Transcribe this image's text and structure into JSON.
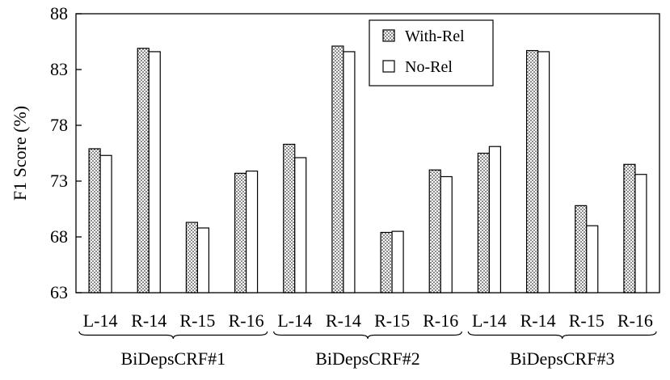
{
  "chart_data": {
    "type": "bar",
    "ylabel": "F1 Score (%)",
    "ylim": [
      63,
      88
    ],
    "yticks": [
      63,
      68,
      73,
      78,
      83,
      88
    ],
    "legend_position": "top-center",
    "groups": [
      {
        "name": "BiDepsCRF#1",
        "categories": [
          "L-14",
          "R-14",
          "R-15",
          "R-16"
        ],
        "series": [
          {
            "name": "With-Rel",
            "values": [
              75.9,
              84.9,
              69.3,
              73.7
            ]
          },
          {
            "name": "No-Rel",
            "values": [
              75.3,
              84.6,
              68.8,
              73.9
            ]
          }
        ]
      },
      {
        "name": "BiDepsCRF#2",
        "categories": [
          "L-14",
          "R-14",
          "R-15",
          "R-16"
        ],
        "series": [
          {
            "name": "With-Rel",
            "values": [
              76.3,
              85.1,
              68.4,
              74.0
            ]
          },
          {
            "name": "No-Rel",
            "values": [
              75.1,
              84.6,
              68.5,
              73.4
            ]
          }
        ]
      },
      {
        "name": "BiDepsCRF#3",
        "categories": [
          "L-14",
          "R-14",
          "R-15",
          "R-16"
        ],
        "series": [
          {
            "name": "With-Rel",
            "values": [
              75.5,
              84.7,
              70.8,
              74.5
            ]
          },
          {
            "name": "No-Rel",
            "values": [
              76.1,
              84.6,
              69.0,
              73.6
            ]
          }
        ]
      }
    ],
    "legend": [
      "With-Rel",
      "No-Rel"
    ]
  }
}
